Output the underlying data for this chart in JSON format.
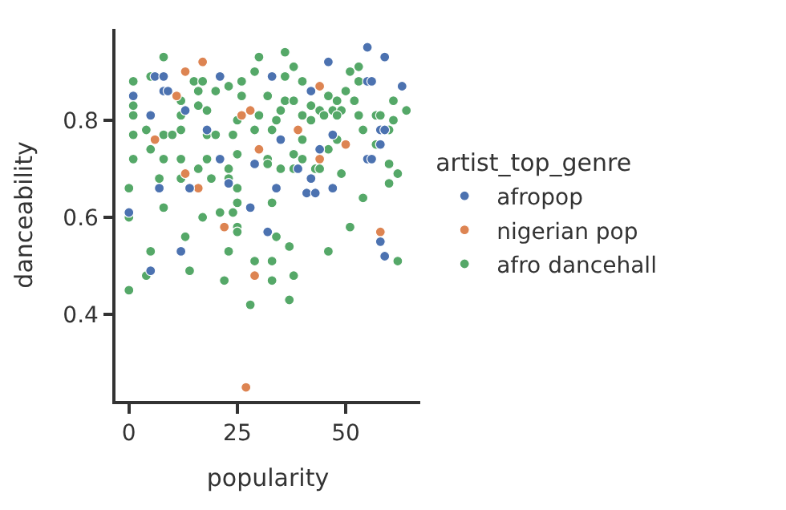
{
  "chart_data": {
    "type": "scatter",
    "xlabel": "popularity",
    "ylabel": "danceability",
    "legend_title": "artist_top_genre",
    "xlim": [
      -3.1,
      67.2
    ],
    "ylim": [
      0.222,
      0.988
    ],
    "xticks": [
      0,
      25,
      50
    ],
    "yticks": [
      0.4,
      0.6,
      0.8
    ],
    "legend": "right",
    "marker": "circle",
    "series": [
      {
        "name": "afropop",
        "color": "#4c72b0",
        "x": [
          0,
          32,
          12,
          58,
          59,
          5,
          6,
          8,
          21,
          8,
          9,
          1,
          13,
          5,
          18,
          21,
          29,
          7,
          14,
          23,
          28,
          55,
          59,
          46,
          33,
          55,
          56,
          63,
          42,
          47,
          58,
          59,
          35,
          44,
          58,
          55,
          56,
          39,
          42,
          34,
          41,
          43,
          47
        ],
        "values": [
          0.61,
          0.57,
          0.53,
          0.55,
          0.52,
          0.49,
          0.89,
          0.89,
          0.89,
          0.86,
          0.86,
          0.85,
          0.82,
          0.81,
          0.78,
          0.72,
          0.71,
          0.66,
          0.66,
          0.67,
          0.62,
          0.95,
          0.93,
          0.92,
          0.89,
          0.88,
          0.88,
          0.87,
          0.86,
          0.77,
          0.78,
          0.78,
          0.76,
          0.74,
          0.75,
          0.72,
          0.72,
          0.7,
          0.68,
          0.66,
          0.65,
          0.65,
          0.66
        ]
      },
      {
        "name": "nigerian pop",
        "color": "#dd8452",
        "x": [
          22,
          58,
          29,
          27,
          17,
          13,
          11,
          26,
          28,
          6,
          30,
          13,
          16,
          44,
          39,
          50,
          44
        ],
        "values": [
          0.58,
          0.57,
          0.48,
          0.25,
          0.92,
          0.9,
          0.85,
          0.81,
          0.82,
          0.76,
          0.74,
          0.69,
          0.66,
          0.87,
          0.78,
          0.75,
          0.72
        ]
      },
      {
        "name": "afro dancehall",
        "color": "#55a868",
        "x": [
          0,
          8,
          17,
          21,
          24,
          25,
          25,
          34,
          13,
          5,
          23,
          37,
          51,
          62,
          46,
          4,
          14,
          29,
          33,
          33,
          38,
          22,
          0,
          28,
          37,
          8,
          1,
          5,
          15,
          17,
          26,
          29,
          1,
          12,
          16,
          20,
          23,
          26,
          16,
          18,
          12,
          25,
          1,
          4,
          1,
          8,
          10,
          12,
          18,
          20,
          24,
          29,
          5,
          1,
          8,
          12,
          18,
          25,
          32,
          23,
          19,
          16,
          12,
          7,
          0,
          23,
          25,
          25,
          36,
          38,
          30,
          51,
          53,
          36,
          53,
          40,
          46,
          32,
          36,
          38,
          61,
          50,
          52,
          42,
          48,
          35,
          44,
          47,
          49,
          64,
          57,
          30,
          40,
          45,
          48,
          53,
          58,
          61,
          34,
          42,
          54,
          33,
          40,
          60,
          38,
          46,
          48,
          57,
          40,
          32,
          60,
          35,
          38,
          43,
          44,
          62,
          49,
          60,
          54,
          33
        ],
        "values": [
          0.6,
          0.62,
          0.6,
          0.61,
          0.61,
          0.58,
          0.57,
          0.56,
          0.56,
          0.53,
          0.53,
          0.54,
          0.58,
          0.51,
          0.53,
          0.48,
          0.49,
          0.51,
          0.51,
          0.47,
          0.48,
          0.47,
          0.45,
          0.42,
          0.43,
          0.93,
          0.88,
          0.89,
          0.88,
          0.88,
          0.88,
          0.9,
          0.83,
          0.84,
          0.86,
          0.86,
          0.87,
          0.85,
          0.83,
          0.82,
          0.81,
          0.8,
          0.81,
          0.78,
          0.77,
          0.77,
          0.77,
          0.78,
          0.77,
          0.77,
          0.77,
          0.78,
          0.74,
          0.72,
          0.72,
          0.72,
          0.72,
          0.73,
          0.72,
          0.7,
          0.68,
          0.7,
          0.68,
          0.68,
          0.66,
          0.68,
          0.66,
          0.63,
          0.94,
          0.91,
          0.93,
          0.9,
          0.91,
          0.89,
          0.88,
          0.88,
          0.85,
          0.85,
          0.84,
          0.84,
          0.84,
          0.86,
          0.84,
          0.83,
          0.84,
          0.82,
          0.82,
          0.82,
          0.82,
          0.82,
          0.81,
          0.81,
          0.81,
          0.81,
          0.81,
          0.81,
          0.81,
          0.8,
          0.8,
          0.8,
          0.78,
          0.78,
          0.76,
          0.78,
          0.73,
          0.74,
          0.76,
          0.75,
          0.72,
          0.71,
          0.71,
          0.7,
          0.7,
          0.7,
          0.7,
          0.69,
          0.69,
          0.67,
          0.64,
          0.63
        ]
      }
    ]
  }
}
